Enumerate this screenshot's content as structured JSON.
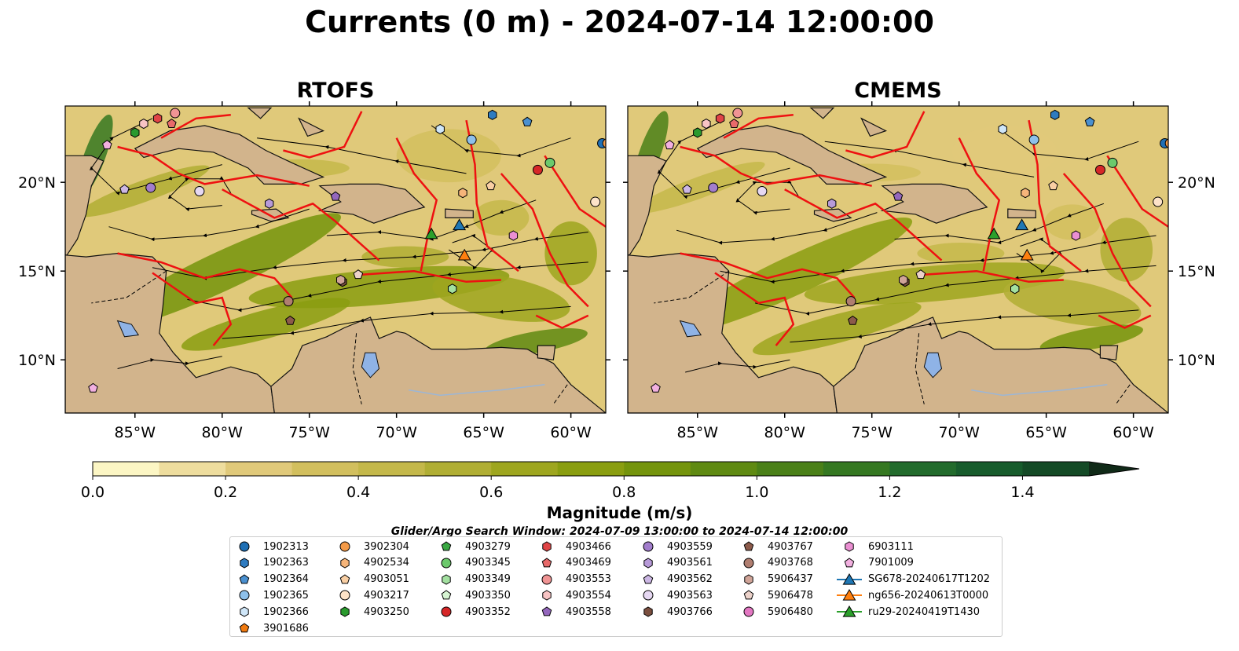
{
  "title": "Currents (0 m) - 2024-07-14 12:00:00",
  "panels": [
    {
      "id": "rtofs",
      "title": "RTOFS"
    },
    {
      "id": "cmems",
      "title": "CMEMS"
    }
  ],
  "axes": {
    "lon_ticks": [
      "85°W",
      "80°W",
      "75°W",
      "70°W",
      "65°W",
      "60°W"
    ],
    "lat_ticks": [
      "20°N",
      "15°N",
      "10°N"
    ]
  },
  "colorbar": {
    "label": "Magnitude (m/s)",
    "ticks": [
      "0.0",
      "0.2",
      "0.4",
      "0.6",
      "0.8",
      "1.0",
      "1.2",
      "1.4"
    ],
    "range": [
      0.0,
      1.5
    ],
    "extend": "max",
    "colors": [
      "#fcf6c4",
      "#eedd9e",
      "#e0c97a",
      "#d2bf5e",
      "#c4b84a",
      "#b0ae34",
      "#9ea61f",
      "#8a9e10",
      "#74940c",
      "#5f8a12",
      "#4a8018",
      "#357821",
      "#226b2c",
      "#175c2c",
      "#144a26",
      "#123820",
      "#102a18"
    ]
  },
  "search_window": "Glider/Argo Search Window: 2024-07-09 13:00:00 to 2024-07-14 12:00:00",
  "legend": {
    "columns": [
      [
        {
          "label": "1902313",
          "marker": "circle",
          "color": "#1f6fb4"
        },
        {
          "label": "1902363",
          "marker": "hexagon",
          "color": "#2e7bc0"
        },
        {
          "label": "1902364",
          "marker": "pentagon",
          "color": "#4a90d0"
        },
        {
          "label": "1902365",
          "marker": "circle",
          "color": "#8ec0ea"
        },
        {
          "label": "1902366",
          "marker": "hexagon",
          "color": "#cfe6f8"
        },
        {
          "label": "3901686",
          "marker": "pentagon",
          "color": "#f07a10"
        }
      ],
      [
        {
          "label": "3902304",
          "marker": "circle",
          "color": "#f39a48"
        },
        {
          "label": "4902534",
          "marker": "hexagon",
          "color": "#f6b57a"
        },
        {
          "label": "4903051",
          "marker": "pentagon",
          "color": "#f9cfa4"
        },
        {
          "label": "4903217",
          "marker": "circle",
          "color": "#fde3c8"
        },
        {
          "label": "4903250",
          "marker": "hexagon",
          "color": "#2a9a2e"
        }
      ],
      [
        {
          "label": "4903279",
          "marker": "pentagon",
          "color": "#3aa843"
        },
        {
          "label": "4903345",
          "marker": "circle",
          "color": "#6cc96c"
        },
        {
          "label": "4903349",
          "marker": "hexagon",
          "color": "#a3e0a0"
        },
        {
          "label": "4903350",
          "marker": "pentagon",
          "color": "#d6f4d2"
        },
        {
          "label": "4903352",
          "marker": "circle",
          "color": "#d62728"
        }
      ],
      [
        {
          "label": "4903466",
          "marker": "hexagon",
          "color": "#e04446"
        },
        {
          "label": "4903469",
          "marker": "pentagon",
          "color": "#e86a6a"
        },
        {
          "label": "4903553",
          "marker": "circle",
          "color": "#f09494"
        },
        {
          "label": "4903554",
          "marker": "hexagon",
          "color": "#f8c4c4"
        },
        {
          "label": "4903558",
          "marker": "pentagon",
          "color": "#9467bd"
        }
      ],
      [
        {
          "label": "4903559",
          "marker": "circle",
          "color": "#a27dcc"
        },
        {
          "label": "4903561",
          "marker": "hexagon",
          "color": "#b79ad8"
        },
        {
          "label": "4903562",
          "marker": "pentagon",
          "color": "#ccb7e4"
        },
        {
          "label": "4903563",
          "marker": "circle",
          "color": "#e6d8f2"
        },
        {
          "label": "4903766",
          "marker": "hexagon",
          "color": "#7b4f3f"
        }
      ],
      [
        {
          "label": "4903767",
          "marker": "pentagon",
          "color": "#8c5a4a"
        },
        {
          "label": "4903768",
          "marker": "circle",
          "color": "#b07e70"
        },
        {
          "label": "5906437",
          "marker": "hexagon",
          "color": "#d0a498"
        },
        {
          "label": "5906478",
          "marker": "pentagon",
          "color": "#ecd2ca"
        },
        {
          "label": "5906480",
          "marker": "circle",
          "color": "#e377c2"
        }
      ],
      [
        {
          "label": "6903111",
          "marker": "hexagon",
          "color": "#ea8fd2"
        },
        {
          "label": "7901009",
          "marker": "pentagon",
          "color": "#f2b0e0"
        },
        {
          "label": "SG678-20240617T1202",
          "marker": "triangle-line",
          "color": "#1f77b4"
        },
        {
          "label": "ng656-20240613T0000",
          "marker": "triangle-line",
          "color": "#ff7f0e"
        },
        {
          "label": "ru29-20240419T1430",
          "marker": "triangle-line",
          "color": "#2ca02c"
        }
      ]
    ]
  },
  "map_colors": {
    "land": "#d2b48c",
    "lake": "#8fb3e6",
    "eez": "#ee1111",
    "coast": "#111111",
    "stream": "#000000",
    "river": "#9cb6d6"
  },
  "floats": [
    {
      "lon": -58.2,
      "lat": 22.2,
      "marker": "circle",
      "color": "#1f6fb4"
    },
    {
      "lon": -64.5,
      "lat": 23.8,
      "marker": "hexagon",
      "color": "#2e7bc0"
    },
    {
      "lon": -62.5,
      "lat": 23.4,
      "marker": "pentagon",
      "color": "#4a90d0"
    },
    {
      "lon": -65.7,
      "lat": 22.4,
      "marker": "circle",
      "color": "#8ec0ea"
    },
    {
      "lon": -67.5,
      "lat": 23.0,
      "marker": "hexagon",
      "color": "#cfe6f8"
    },
    {
      "lon": -57.9,
      "lat": 22.2,
      "marker": "circle",
      "color": "#f39a48"
    },
    {
      "lon": -66.2,
      "lat": 19.4,
      "marker": "hexagon",
      "color": "#f6b57a"
    },
    {
      "lon": -64.6,
      "lat": 19.8,
      "marker": "pentagon",
      "color": "#f9cfa4"
    },
    {
      "lon": -58.6,
      "lat": 18.9,
      "marker": "circle",
      "color": "#fde3c8"
    },
    {
      "lon": -85.0,
      "lat": 22.8,
      "marker": "hexagon",
      "color": "#2a9a2e"
    },
    {
      "lon": -61.2,
      "lat": 21.1,
      "marker": "circle",
      "color": "#6cc96c"
    },
    {
      "lon": -66.8,
      "lat": 14.0,
      "marker": "hexagon",
      "color": "#a3e0a0"
    },
    {
      "lon": -61.9,
      "lat": 20.7,
      "marker": "circle",
      "color": "#d62728"
    },
    {
      "lon": -83.7,
      "lat": 23.6,
      "marker": "hexagon",
      "color": "#e04446"
    },
    {
      "lon": -82.9,
      "lat": 23.3,
      "marker": "pentagon",
      "color": "#e86a6a"
    },
    {
      "lon": -82.7,
      "lat": 23.9,
      "marker": "circle",
      "color": "#f09494"
    },
    {
      "lon": -84.5,
      "lat": 23.3,
      "marker": "hexagon",
      "color": "#f8c4c4"
    },
    {
      "lon": -73.5,
      "lat": 19.2,
      "marker": "pentagon",
      "color": "#9467bd"
    },
    {
      "lon": -84.1,
      "lat": 19.7,
      "marker": "circle",
      "color": "#a27dcc"
    },
    {
      "lon": -77.3,
      "lat": 18.8,
      "marker": "hexagon",
      "color": "#b79ad8"
    },
    {
      "lon": -85.6,
      "lat": 19.6,
      "marker": "pentagon",
      "color": "#ccb7e4"
    },
    {
      "lon": -81.3,
      "lat": 19.5,
      "marker": "circle",
      "color": "#e6d8f2"
    },
    {
      "lon": -73.1,
      "lat": 14.4,
      "marker": "hexagon",
      "color": "#7b4f3f"
    },
    {
      "lon": -76.1,
      "lat": 12.2,
      "marker": "pentagon",
      "color": "#8c5a4a"
    },
    {
      "lon": -76.2,
      "lat": 13.3,
      "marker": "circle",
      "color": "#b07e70"
    },
    {
      "lon": -73.2,
      "lat": 14.5,
      "marker": "hexagon",
      "color": "#d0a498"
    },
    {
      "lon": -72.2,
      "lat": 14.8,
      "marker": "pentagon",
      "color": "#ecd2ca"
    },
    {
      "lon": -63.3,
      "lat": 17.0,
      "marker": "hexagon",
      "color": "#ea8fd2"
    },
    {
      "lon": -86.6,
      "lat": 22.1,
      "marker": "pentagon",
      "color": "#f2b0e0"
    },
    {
      "lon": -87.4,
      "lat": 8.4,
      "marker": "pentagon",
      "color": "#f2b0e0"
    }
  ],
  "gliders": [
    {
      "lon": -66.4,
      "lat": 17.6,
      "color": "#1f77b4"
    },
    {
      "lon": -66.1,
      "lat": 15.9,
      "color": "#ff7f0e"
    },
    {
      "lon": -68.0,
      "lat": 17.1,
      "color": "#2ca02c"
    }
  ]
}
